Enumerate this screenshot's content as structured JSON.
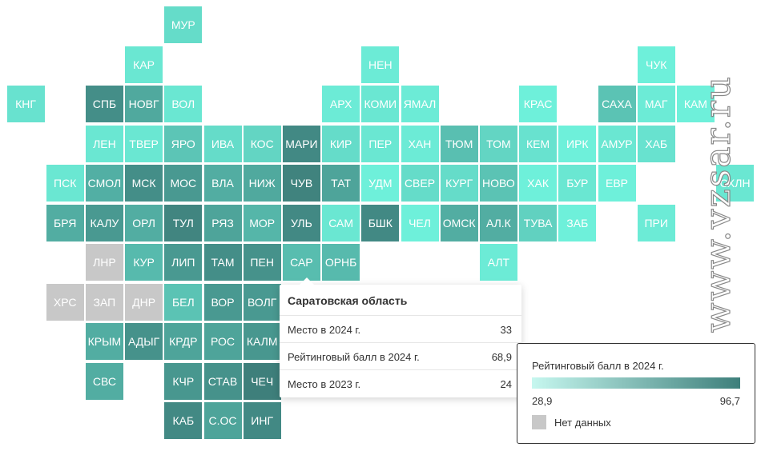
{
  "legend": {
    "title": "Рейтинговый балл в 2024 г.",
    "min": "28,9",
    "max": "96,7",
    "no_data_label": "Нет данных",
    "color_low": "#c6f7ef",
    "color_high": "#3e7f7b",
    "color_no_data": "#c8c8c8"
  },
  "tooltip": {
    "title": "Саратовская область",
    "rows": [
      {
        "label": "Место в 2024 г.",
        "value": "33"
      },
      {
        "label": "Рейтинговый балл в 2024 г.",
        "value": "68,9"
      },
      {
        "label": "Место в 2023 г.",
        "value": "24"
      }
    ]
  },
  "watermark": "www.vzsar.ru",
  "regions": [
    {
      "label": "МУР",
      "col": 4,
      "row": 0,
      "score": 55
    },
    {
      "label": "КАР",
      "col": 3,
      "row": 1,
      "score": 50
    },
    {
      "label": "НЕН",
      "col": 9,
      "row": 1,
      "score": 48
    },
    {
      "label": "ЧУК",
      "col": 16,
      "row": 1,
      "score": 45
    },
    {
      "label": "КНГ",
      "col": 0,
      "row": 2,
      "score": 52
    },
    {
      "label": "СПБ",
      "col": 2,
      "row": 2,
      "score": 90
    },
    {
      "label": "НОВГ",
      "col": 3,
      "row": 2,
      "score": 78
    },
    {
      "label": "ВОЛ",
      "col": 4,
      "row": 2,
      "score": 50
    },
    {
      "label": "АРХ",
      "col": 8,
      "row": 2,
      "score": 48
    },
    {
      "label": "КОМИ",
      "col": 9,
      "row": 2,
      "score": 50
    },
    {
      "label": "ЯМАЛ",
      "col": 10,
      "row": 2,
      "score": 48
    },
    {
      "label": "КРАС",
      "col": 13,
      "row": 2,
      "score": 45
    },
    {
      "label": "САХА",
      "col": 15,
      "row": 2,
      "score": 66
    },
    {
      "label": "МАГ",
      "col": 16,
      "row": 2,
      "score": 48
    },
    {
      "label": "КАМ",
      "col": 17,
      "row": 2,
      "score": 38
    },
    {
      "label": "ЛЕН",
      "col": 2,
      "row": 3,
      "score": 50
    },
    {
      "label": "ТВЕР",
      "col": 3,
      "row": 3,
      "score": 50
    },
    {
      "label": "ЯРО",
      "col": 4,
      "row": 3,
      "score": 65
    },
    {
      "label": "ИВА",
      "col": 5,
      "row": 3,
      "score": 55
    },
    {
      "label": "КОС",
      "col": 6,
      "row": 3,
      "score": 58
    },
    {
      "label": "МАРИ",
      "col": 7,
      "row": 3,
      "score": 92
    },
    {
      "label": "КИР",
      "col": 8,
      "row": 3,
      "score": 55
    },
    {
      "label": "ПЕР",
      "col": 9,
      "row": 3,
      "score": 50
    },
    {
      "label": "ХАН",
      "col": 10,
      "row": 3,
      "score": 48
    },
    {
      "label": "ТЮМ",
      "col": 11,
      "row": 3,
      "score": 68
    },
    {
      "label": "ТОМ",
      "col": 12,
      "row": 3,
      "score": 58
    },
    {
      "label": "КЕМ",
      "col": 13,
      "row": 3,
      "score": 52
    },
    {
      "label": "ИРК",
      "col": 14,
      "row": 3,
      "score": 45
    },
    {
      "label": "АМУР",
      "col": 15,
      "row": 3,
      "score": 50
    },
    {
      "label": "ХАБ",
      "col": 16,
      "row": 3,
      "score": 52
    },
    {
      "label": "ПСК",
      "col": 1,
      "row": 4,
      "score": 50
    },
    {
      "label": "СМОЛ",
      "col": 2,
      "row": 4,
      "score": 75
    },
    {
      "label": "МСК",
      "col": 3,
      "row": 4,
      "score": 90
    },
    {
      "label": "МОС",
      "col": 4,
      "row": 4,
      "score": 85
    },
    {
      "label": "ВЛА",
      "col": 5,
      "row": 4,
      "score": 76
    },
    {
      "label": "НИЖ",
      "col": 6,
      "row": 4,
      "score": 78
    },
    {
      "label": "ЧУВ",
      "col": 7,
      "row": 4,
      "score": 95
    },
    {
      "label": "ТАТ",
      "col": 8,
      "row": 4,
      "score": 80
    },
    {
      "label": "УДМ",
      "col": 9,
      "row": 4,
      "score": 42
    },
    {
      "label": "СВЕР",
      "col": 10,
      "row": 4,
      "score": 55
    },
    {
      "label": "КУРГ",
      "col": 11,
      "row": 4,
      "score": 55
    },
    {
      "label": "НОВО",
      "col": 12,
      "row": 4,
      "score": 66
    },
    {
      "label": "ХАК",
      "col": 13,
      "row": 4,
      "score": 36
    },
    {
      "label": "БУР",
      "col": 14,
      "row": 4,
      "score": 50
    },
    {
      "label": "ЕВР",
      "col": 15,
      "row": 4,
      "score": 38
    },
    {
      "label": "СХЛН",
      "col": 18,
      "row": 4,
      "score": 50
    },
    {
      "label": "БРЯ",
      "col": 1,
      "row": 5,
      "score": 76
    },
    {
      "label": "КАЛУ",
      "col": 2,
      "row": 5,
      "score": 85
    },
    {
      "label": "ОРЛ",
      "col": 3,
      "row": 5,
      "score": 76
    },
    {
      "label": "ТУЛ",
      "col": 4,
      "row": 5,
      "score": 94
    },
    {
      "label": "РЯЗ",
      "col": 5,
      "row": 5,
      "score": 80
    },
    {
      "label": "МОР",
      "col": 6,
      "row": 5,
      "score": 72
    },
    {
      "label": "УЛЬ",
      "col": 7,
      "row": 5,
      "score": 92
    },
    {
      "label": "САМ",
      "col": 8,
      "row": 5,
      "score": 50
    },
    {
      "label": "БШК",
      "col": 9,
      "row": 5,
      "score": 92
    },
    {
      "label": "ЧЕЛ",
      "col": 10,
      "row": 5,
      "score": 38
    },
    {
      "label": "ОМСК",
      "col": 11,
      "row": 5,
      "score": 76
    },
    {
      "label": "АЛ.К",
      "col": 12,
      "row": 5,
      "score": 76
    },
    {
      "label": "ТУВА",
      "col": 13,
      "row": 5,
      "score": 60
    },
    {
      "label": "ЗАБ",
      "col": 14,
      "row": 5,
      "score": 40
    },
    {
      "label": "ПРИ",
      "col": 16,
      "row": 5,
      "score": 48
    },
    {
      "label": "ЛНР",
      "col": 2,
      "row": 6,
      "score": null
    },
    {
      "label": "КУР",
      "col": 3,
      "row": 6,
      "score": 70
    },
    {
      "label": "ЛИП",
      "col": 4,
      "row": 6,
      "score": 85
    },
    {
      "label": "ТАМ",
      "col": 5,
      "row": 6,
      "score": 90
    },
    {
      "label": "ПЕН",
      "col": 6,
      "row": 6,
      "score": 88
    },
    {
      "label": "САР",
      "col": 7,
      "row": 6,
      "score": 68.9,
      "selected": true
    },
    {
      "label": "ОРНБ",
      "col": 8,
      "row": 6,
      "score": 70
    },
    {
      "label": "АЛТ",
      "col": 12,
      "row": 6,
      "score": 48
    },
    {
      "label": "ХРС",
      "col": 1,
      "row": 7,
      "score": null
    },
    {
      "label": "ЗАП",
      "col": 2,
      "row": 7,
      "score": null
    },
    {
      "label": "ДНР",
      "col": 3,
      "row": 7,
      "score": null
    },
    {
      "label": "БЕЛ",
      "col": 4,
      "row": 7,
      "score": 66
    },
    {
      "label": "ВОР",
      "col": 5,
      "row": 7,
      "score": 85
    },
    {
      "label": "ВОЛГ",
      "col": 6,
      "row": 7,
      "score": 85
    },
    {
      "label": "КРЫМ",
      "col": 2,
      "row": 8,
      "score": 76
    },
    {
      "label": "АДЫГ",
      "col": 3,
      "row": 8,
      "score": 88
    },
    {
      "label": "КРДР",
      "col": 4,
      "row": 8,
      "score": 80
    },
    {
      "label": "РОС",
      "col": 5,
      "row": 8,
      "score": 80
    },
    {
      "label": "КАЛМ",
      "col": 6,
      "row": 8,
      "score": 86
    },
    {
      "label": "СВС",
      "col": 2,
      "row": 9,
      "score": 76
    },
    {
      "label": "КЧР",
      "col": 4,
      "row": 9,
      "score": 86
    },
    {
      "label": "СТАВ",
      "col": 5,
      "row": 9,
      "score": 88
    },
    {
      "label": "ЧЕЧ",
      "col": 6,
      "row": 9,
      "score": 96.7
    },
    {
      "label": "КАБ",
      "col": 4,
      "row": 10,
      "score": 92
    },
    {
      "label": "С.ОС",
      "col": 5,
      "row": 10,
      "score": 80
    },
    {
      "label": "ИНГ",
      "col": 6,
      "row": 10,
      "score": 92
    }
  ]
}
